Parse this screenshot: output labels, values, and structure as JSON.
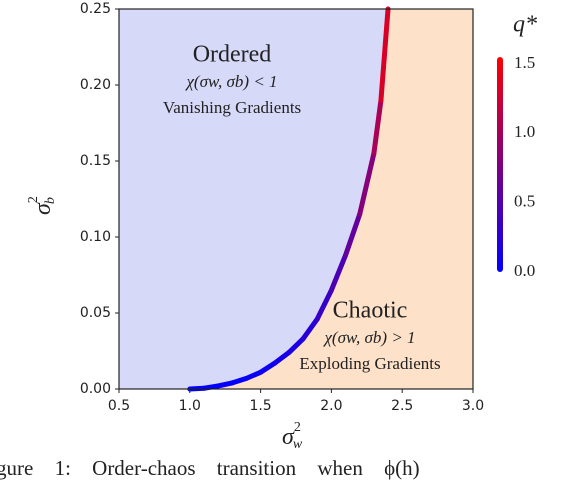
{
  "chart_data": {
    "type": "phase-line",
    "x_label": {
      "base": "σ",
      "sup": "2",
      "sub": "w"
    },
    "y_label": {
      "base": "σ",
      "sup": "2",
      "sub": "b"
    },
    "colorbar_label": "q*",
    "regions": [
      {
        "title": "Ordered",
        "condition": "χ(σw, σb) < 1",
        "note": "Vanishing Gradients",
        "color": "#d7d9f8"
      },
      {
        "title": "Chaotic",
        "condition": "χ(σw, σb) > 1",
        "note": "Exploding Gradients",
        "color": "#fde1c9"
      }
    ],
    "series": [
      {
        "x": [
          1.0,
          1.1,
          1.2,
          1.3,
          1.4,
          1.5,
          1.6,
          1.7,
          1.8,
          1.9,
          2.0,
          2.1,
          2.2,
          2.3,
          2.35,
          2.4
        ],
        "values": [
          0,
          0.0005,
          0.002,
          0.004,
          0.007,
          0.011,
          0.017,
          0.024,
          0.033,
          0.046,
          0.065,
          0.088,
          0.115,
          0.155,
          0.19,
          0.25
        ],
        "q": [
          0,
          0.003,
          0.012,
          0.024,
          0.042,
          0.066,
          0.1,
          0.14,
          0.2,
          0.28,
          0.39,
          0.53,
          0.69,
          0.93,
          1.14,
          1.5
        ]
      }
    ],
    "colormap": [
      "#0000ff",
      "#ff0000"
    ],
    "clim": [
      0,
      1.55
    ],
    "cticks": [
      {
        "value": 0,
        "label": "0.0"
      },
      0.5,
      {
        "value": 1,
        "label": "1.0"
      },
      1.5
    ],
    "xlim": [
      0.5,
      3.0
    ],
    "xticks": [
      0.5,
      {
        "value": 1,
        "label": "1.0"
      },
      1.5,
      {
        "value": 2,
        "label": "2.0"
      },
      2.5,
      {
        "value": 3,
        "label": "3.0"
      }
    ],
    "ylim": [
      0,
      0.25
    ],
    "yticks": [
      {
        "value": 0,
        "label": "0.00"
      },
      {
        "value": 0.05,
        "label": "0.05"
      },
      {
        "value": 0.1,
        "label": "0.10"
      },
      {
        "value": 0.15,
        "label": "0.15"
      },
      {
        "value": 0.2,
        "label": "0.20"
      },
      0.25
    ],
    "caption": "gure 1:   Order-chaos transition when ϕ(h)"
  }
}
